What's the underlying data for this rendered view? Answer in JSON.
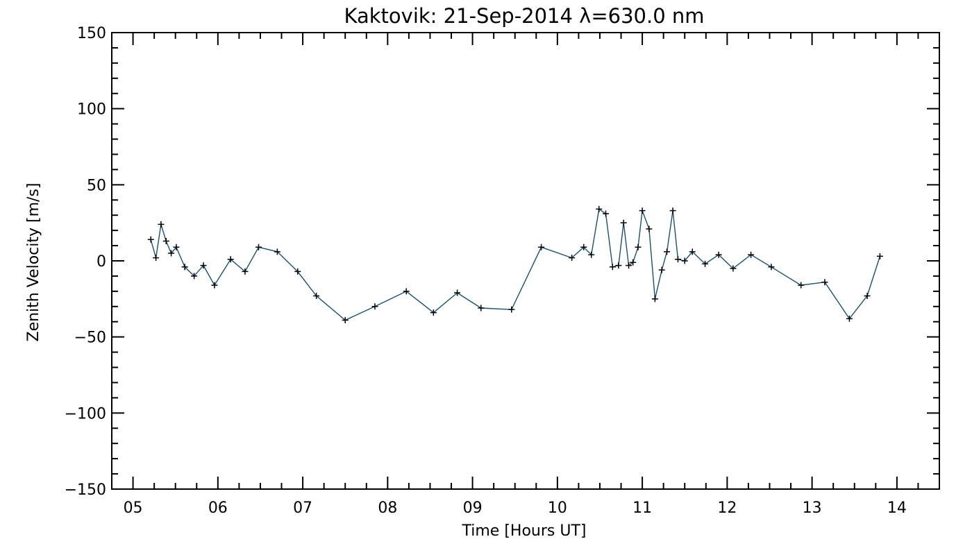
{
  "chart_data": {
    "type": "line",
    "title": "Kaktovik: 21-Sep-2014 λ=630.0 nm",
    "xlabel": "Time [Hours UT]",
    "ylabel": "Zenith Velocity [m/s]",
    "xlim": [
      4.75,
      14.5
    ],
    "ylim": [
      -150,
      150
    ],
    "x_ticks": [
      5,
      6,
      7,
      8,
      9,
      10,
      11,
      12,
      13,
      14
    ],
    "x_tick_labels": [
      "05",
      "06",
      "07",
      "08",
      "09",
      "10",
      "11",
      "12",
      "13",
      "14"
    ],
    "y_ticks": [
      -150,
      -100,
      -50,
      0,
      50,
      100,
      150
    ],
    "y_tick_labels": [
      "−150",
      "−100",
      "−50",
      "0",
      "50",
      "100",
      "150"
    ],
    "grid": false,
    "line_color": "#1a4f6e",
    "marker": "+",
    "series": [
      {
        "x": [
          5.21,
          5.27,
          5.33,
          5.39,
          5.45,
          5.51,
          5.61,
          5.72,
          5.83,
          5.96,
          6.15,
          6.32,
          6.48,
          6.7,
          6.94,
          7.16,
          7.5,
          7.85,
          8.22,
          8.54,
          8.82,
          9.1,
          9.46,
          9.81,
          10.17,
          10.31,
          10.4,
          10.49,
          10.57,
          10.65,
          10.72,
          10.78,
          10.84,
          10.89,
          10.95,
          11.0,
          11.08,
          11.15,
          11.23,
          11.29,
          11.36,
          11.42,
          11.5,
          11.59,
          11.74,
          11.9,
          12.07,
          12.28,
          12.52,
          12.87,
          13.15,
          13.44,
          13.65,
          13.8
        ],
        "y": [
          14,
          2,
          24,
          13,
          5,
          9,
          -4,
          -10,
          -3,
          -16,
          1,
          -7,
          9,
          6,
          -7,
          -23,
          -39,
          -30,
          -20,
          -34,
          -21,
          -31,
          -32,
          9,
          2,
          9,
          4,
          34,
          31,
          -4,
          -3,
          25,
          -3,
          -1,
          9,
          33,
          21,
          -25,
          -6,
          6,
          33,
          1,
          0,
          6,
          -2,
          4,
          -5,
          4,
          -4,
          -16,
          -14,
          -38,
          -23,
          3
        ]
      }
    ]
  }
}
